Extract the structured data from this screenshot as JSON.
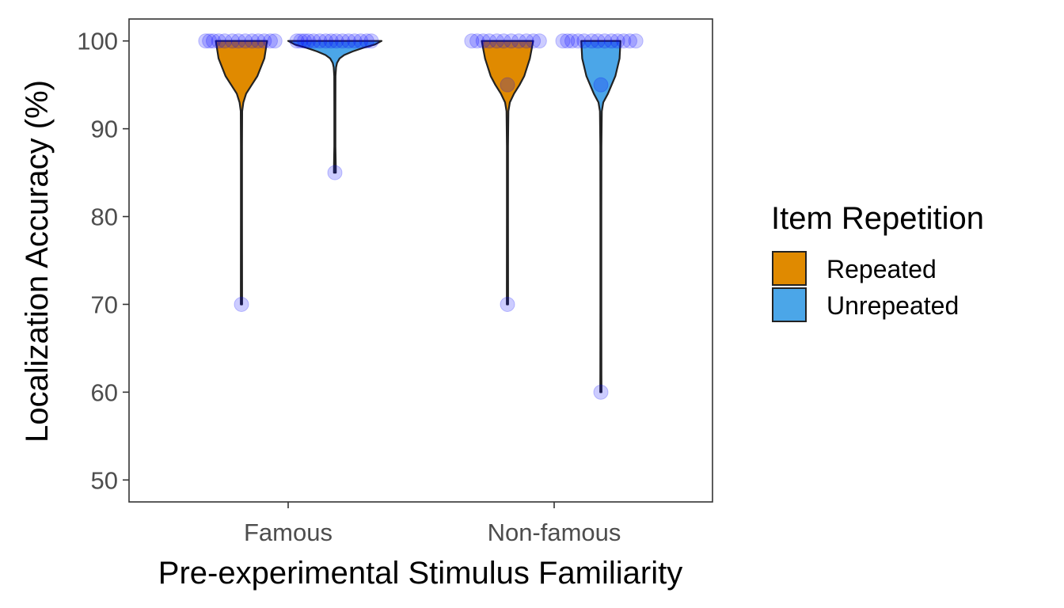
{
  "chart_data": {
    "type": "violin",
    "xlabel": "Pre-experimental Stimulus Familiarity",
    "ylabel": "Localization Accuracy (%)",
    "ylim": [
      47.5,
      102.5
    ],
    "y_ticks": [
      50,
      60,
      70,
      80,
      90,
      100
    ],
    "categories": [
      "Famous",
      "Non-famous"
    ],
    "grid": false,
    "legend": {
      "title": "Item Repetition",
      "position": "right",
      "entries": [
        {
          "name": "Repeated",
          "color": "#E08A00"
        },
        {
          "name": "Unrepeated",
          "color": "#4BA6E8"
        }
      ]
    },
    "point_color": "#0000FF",
    "series": [
      {
        "name": "Repeated",
        "color": "#E08A00",
        "groups": [
          {
            "category": "Famous",
            "range": [
              70,
              100
            ],
            "profile": [
              [
                100,
                0.55
              ],
              [
                98,
                0.49
              ],
              [
                96,
                0.34
              ],
              [
                95,
                0.22
              ],
              [
                94,
                0.1
              ],
              [
                93,
                0.04
              ],
              [
                92,
                0.015
              ],
              [
                88,
                0.012
              ],
              [
                80,
                0.012
              ],
              [
                72,
                0.013
              ],
              [
                70,
                0.014
              ]
            ],
            "points": [
              {
                "y": 100,
                "dx": -0.47
              },
              {
                "y": 100,
                "dx": -0.42
              },
              {
                "y": 100,
                "dx": -0.37
              },
              {
                "y": 100,
                "dx": -0.3
              },
              {
                "y": 100,
                "dx": -0.22
              },
              {
                "y": 100,
                "dx": -0.12
              },
              {
                "y": 100,
                "dx": -0.04
              },
              {
                "y": 100,
                "dx": 0.05
              },
              {
                "y": 100,
                "dx": 0.14
              },
              {
                "y": 100,
                "dx": 0.22
              },
              {
                "y": 100,
                "dx": 0.3
              },
              {
                "y": 100,
                "dx": 0.38
              },
              {
                "y": 100,
                "dx": 0.44
              },
              {
                "y": 70,
                "dx": 0
              }
            ]
          },
          {
            "category": "Non-famous",
            "range": [
              70,
              100
            ],
            "profile": [
              [
                100,
                0.55
              ],
              [
                98,
                0.48
              ],
              [
                96,
                0.36
              ],
              [
                95,
                0.26
              ],
              [
                94,
                0.14
              ],
              [
                93,
                0.05
              ],
              [
                92,
                0.02
              ],
              [
                88,
                0.012
              ],
              [
                80,
                0.012
              ],
              [
                72,
                0.013
              ],
              [
                70,
                0.014
              ]
            ],
            "points": [
              {
                "y": 100,
                "dx": -0.47
              },
              {
                "y": 100,
                "dx": -0.4
              },
              {
                "y": 100,
                "dx": -0.32
              },
              {
                "y": 100,
                "dx": -0.24
              },
              {
                "y": 100,
                "dx": -0.14
              },
              {
                "y": 100,
                "dx": -0.05
              },
              {
                "y": 100,
                "dx": 0.05
              },
              {
                "y": 100,
                "dx": 0.15
              },
              {
                "y": 100,
                "dx": 0.25
              },
              {
                "y": 100,
                "dx": 0.34
              },
              {
                "y": 100,
                "dx": 0.42
              },
              {
                "y": 95,
                "dx": 0
              },
              {
                "y": 70,
                "dx": 0
              }
            ]
          }
        ]
      },
      {
        "name": "Unrepeated",
        "color": "#4BA6E8",
        "groups": [
          {
            "category": "Famous",
            "range": [
              85,
              100
            ],
            "profile": [
              [
                100,
                1.0
              ],
              [
                99.6,
                0.86
              ],
              [
                99.2,
                0.6
              ],
              [
                98.8,
                0.38
              ],
              [
                98.4,
                0.2
              ],
              [
                98,
                0.1
              ],
              [
                97.5,
                0.045
              ],
              [
                97,
                0.025
              ],
              [
                96,
                0.014
              ],
              [
                92,
                0.012
              ],
              [
                88,
                0.012
              ],
              [
                86,
                0.018
              ],
              [
                85,
                0.02
              ]
            ],
            "points": [
              {
                "y": 100,
                "dx": -0.5
              },
              {
                "y": 100,
                "dx": -0.45
              },
              {
                "y": 100,
                "dx": -0.4
              },
              {
                "y": 100,
                "dx": -0.35
              },
              {
                "y": 100,
                "dx": -0.28
              },
              {
                "y": 100,
                "dx": -0.2
              },
              {
                "y": 100,
                "dx": -0.12
              },
              {
                "y": 100,
                "dx": -0.05
              },
              {
                "y": 100,
                "dx": 0.02
              },
              {
                "y": 100,
                "dx": 0.1
              },
              {
                "y": 100,
                "dx": 0.18
              },
              {
                "y": 100,
                "dx": 0.26
              },
              {
                "y": 100,
                "dx": 0.34
              },
              {
                "y": 100,
                "dx": 0.42
              },
              {
                "y": 100,
                "dx": 0.48
              },
              {
                "y": 85,
                "dx": 0
              }
            ]
          },
          {
            "category": "Non-famous",
            "range": [
              60,
              100
            ],
            "profile": [
              [
                100,
                0.42
              ],
              [
                98,
                0.4
              ],
              [
                96,
                0.31
              ],
              [
                94,
                0.15
              ],
              [
                93,
                0.05
              ],
              [
                92,
                0.02
              ],
              [
                88,
                0.012
              ],
              [
                80,
                0.011
              ],
              [
                70,
                0.011
              ],
              [
                62,
                0.012
              ],
              [
                60,
                0.014
              ]
            ],
            "points": [
              {
                "y": 100,
                "dx": -0.5
              },
              {
                "y": 100,
                "dx": -0.44
              },
              {
                "y": 100,
                "dx": -0.38
              },
              {
                "y": 100,
                "dx": -0.3
              },
              {
                "y": 100,
                "dx": -0.22
              },
              {
                "y": 100,
                "dx": -0.12
              },
              {
                "y": 100,
                "dx": -0.04
              },
              {
                "y": 100,
                "dx": 0.05
              },
              {
                "y": 100,
                "dx": 0.14
              },
              {
                "y": 100,
                "dx": 0.22
              },
              {
                "y": 100,
                "dx": 0.3
              },
              {
                "y": 100,
                "dx": 0.38
              },
              {
                "y": 100,
                "dx": 0.46
              },
              {
                "y": 95,
                "dx": 0
              },
              {
                "y": 60,
                "dx": 0
              }
            ]
          }
        ]
      }
    ]
  }
}
